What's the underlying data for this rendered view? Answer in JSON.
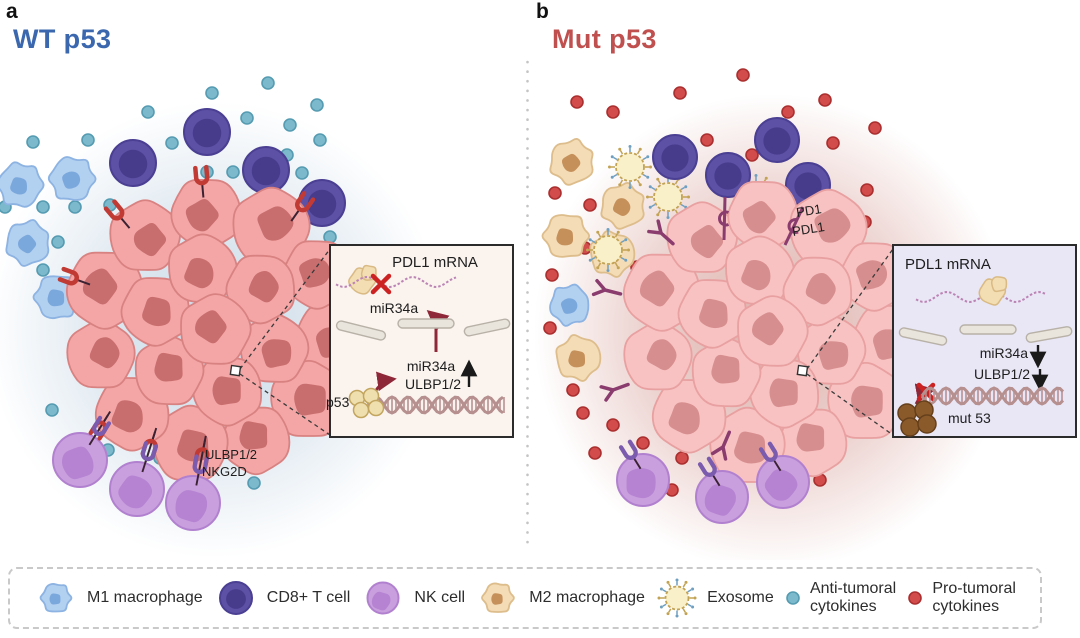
{
  "panel_a": {
    "letter": "a",
    "title": "WT p53",
    "receptor_pair": {
      "ligand": "ULBP1/2",
      "receptor": "NKG2D"
    },
    "inset": {
      "pdl1_mrna": "PDL1 mRNA",
      "mir34a_released": "miR34a",
      "mir34a": "miR34a",
      "ulbp": "ULBP1/2",
      "p53": "p53"
    }
  },
  "panel_b": {
    "letter": "b",
    "title": "Mut p53",
    "checkpoint_pair": {
      "receptor": "PD1",
      "ligand": "PDL1"
    },
    "inset": {
      "pdl1_mrna": "PDL1 mRNA",
      "mir34a": "miR34a",
      "ulbp": "ULBP1/2",
      "mut53": "mut 53"
    }
  },
  "legend": {
    "items": [
      {
        "icon": "m1-macrophage-icon",
        "label": "M1 macrophage"
      },
      {
        "icon": "cd8-t-cell-icon",
        "label": "CD8+ T cell"
      },
      {
        "icon": "nk-cell-icon",
        "label": "NK cell"
      },
      {
        "icon": "m2-macrophage-icon",
        "label": "M2 macrophage"
      },
      {
        "icon": "exosome-icon",
        "label": "Exosome"
      },
      {
        "icon": "anti-tumoral-cytokine-icon",
        "label": "Anti-tumoral\ncytokines"
      },
      {
        "icon": "pro-tumoral-cytokine-icon",
        "label": "Pro-tumoral\ncytokines"
      }
    ]
  },
  "colors": {
    "wt_title": "#3a67ae",
    "mut_title": "#c0504f",
    "tumor_cell_a": "#f4a6a6",
    "tumor_cell_edge_a": "#d98282",
    "tumor_nucleus_a": "#c96e6e",
    "tumor_cell_b": "#f8c2c2",
    "tumor_cell_edge_b": "#e8a0a0",
    "tumor_nucleus_b": "#d78e8e",
    "glow_a": "#c3d6e6",
    "glow_b": "#d9a39d",
    "m1_body": "#b2d0f0",
    "m1_edge": "#8db3e2",
    "m1_nucleus": "#7ba8dc",
    "cd8_body": "#5c51a4",
    "cd8_edge": "#4a3f92",
    "cd8_inner": "#473c8c",
    "nk_body": "#c99fde",
    "nk_edge": "#b181cf",
    "nk_inner": "#b583d2",
    "m2_body": "#f4dcb6",
    "m2_edge": "#ddbd8b",
    "m2_nucleus": "#c6905b",
    "exosome_body": "#f9f0c9",
    "exosome_edge": "#c2a253",
    "exosome_spike_blue": "#6f9fc0",
    "anti_dot": "#7cb9cc",
    "anti_dot_edge": "#559bb1",
    "pro_dot": "#d24c4c",
    "pro_dot_edge": "#ab2f2f",
    "ulbp_receptor": "#c13a33",
    "nkg2d_receptor": "#7b5bad",
    "pd1_receptor": "#8a3c6e",
    "stick": "#3b2233",
    "inset_a_bg": "#faf3ee",
    "inset_b_bg": "#e9e6f6",
    "inset_border": "#2b2b2b",
    "membrane": "#e9e4dc",
    "membrane_edge": "#b7b1a7",
    "mrna": "#bb84b4",
    "ribosome": "#f3ddb2",
    "ribosome_edge": "#d9ba84",
    "dna": "#b68f8f",
    "p53_protein": "#efdfae",
    "p53_protein_edge": "#c2a55e",
    "mut53_protein": "#8a5a2a",
    "mut53_protein_edge": "#66401b",
    "dark_red_arrow": "#8e2838",
    "red_x": "#cc2222",
    "black_arrow": "#1a1a1a",
    "divider": "#c4c4c4",
    "legend_border": "#c9c9c9",
    "legend_text": "#2d2d2d"
  }
}
